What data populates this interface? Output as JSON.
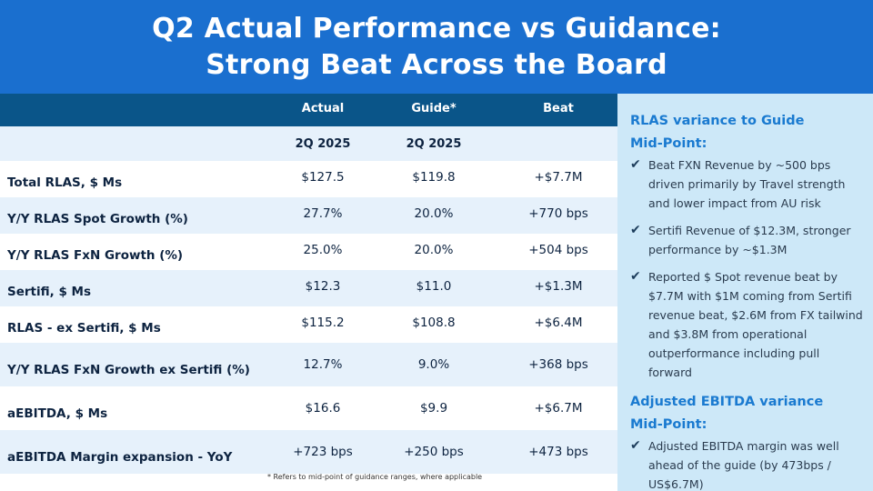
{
  "title": {
    "line1": "Q2 Actual Performance vs Guidance:",
    "line2": "Strong Beat Across the Board"
  },
  "table": {
    "headers": [
      "Actual",
      "Guide*",
      "Beat"
    ],
    "subheaders": [
      "2Q 2025",
      "2Q 2025",
      ""
    ],
    "rows": [
      {
        "label": "Total RLAS, $ Ms",
        "actual": "$127.5",
        "guide": "$119.8",
        "beat": "+$7.7M"
      },
      {
        "label": "Y/Y RLAS Spot Growth (%)",
        "actual": "27.7%",
        "guide": "20.0%",
        "beat": "+770 bps"
      },
      {
        "label": "Y/Y RLAS FxN Growth (%)",
        "actual": "25.0%",
        "guide": "20.0%",
        "beat": "+504 bps"
      },
      {
        "label": "Sertifi, $ Ms",
        "actual": "$12.3",
        "guide": "$11.0",
        "beat": "+$1.3M"
      },
      {
        "label": "RLAS - ex Sertifi, $ Ms",
        "actual": "$115.2",
        "guide": "$108.8",
        "beat": "+$6.4M"
      },
      {
        "label": "Y/Y RLAS FxN Growth ex Sertifi (%)",
        "actual": "12.7%",
        "guide": "9.0%",
        "beat": "+368 bps"
      },
      {
        "label": "aEBITDA, $ Ms",
        "actual": "$16.6",
        "guide": "$9.9",
        "beat": "+$6.7M"
      },
      {
        "label": "aEBITDA Margin expansion - YoY",
        "actual": "+723 bps",
        "guide": "+250 bps",
        "beat": "+473 bps"
      }
    ],
    "footnote": "* Refers to mid-point of guidance ranges, where applicable"
  },
  "panel": {
    "section1_title_l1": "RLAS variance to Guide",
    "section1_title_l2": "Mid-Point:",
    "section1_bullets": [
      "Beat FXN Revenue by ~500 bps driven primarily by Travel strength and lower impact from AU risk",
      "Sertifi Revenue of $12.3M, stronger performance by ~$1.3M",
      "Reported $ Spot revenue beat by $7.7M with $1M coming from Sertifi revenue beat, $2.6M from FX tailwind and $3.8M from operational outperformance including pull forward"
    ],
    "section2_title_l1": "Adjusted EBITDA variance",
    "section2_title_l2": "Mid-Point:",
    "section2_bullets": [
      "Adjusted EBITDA margin was well ahead of the guide (by 473bps / US$6.7M)"
    ],
    "check_glyph": "✔"
  },
  "colors": {
    "header_bg": "#1a6fcf",
    "table_header_bg": "#0a5589",
    "row_alt_bg": "#e6f1fb",
    "panel_bg": "#cde8f8",
    "panel_heading": "#1a7ad0"
  }
}
